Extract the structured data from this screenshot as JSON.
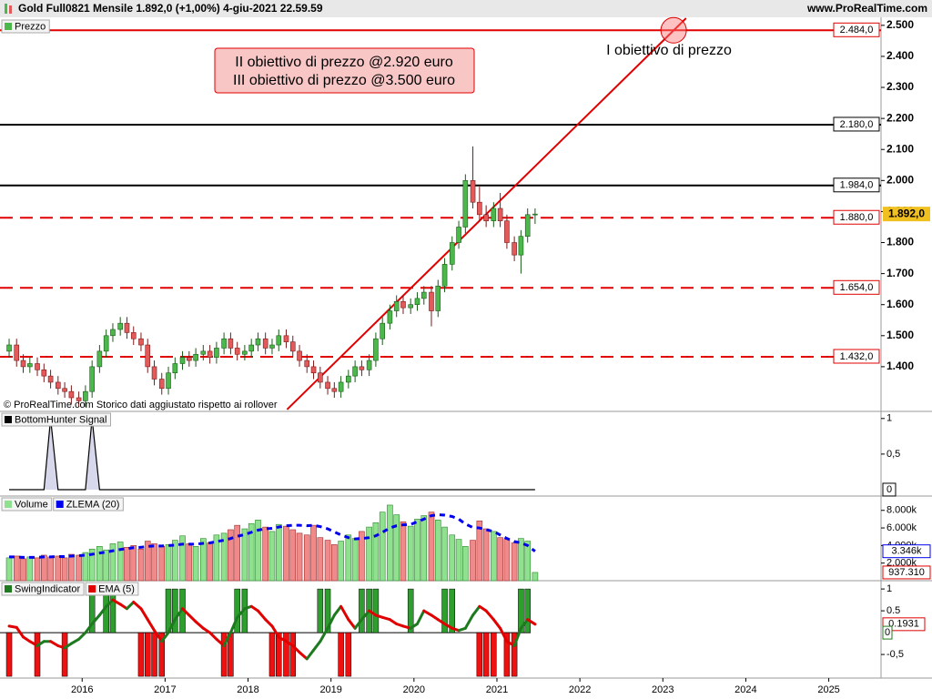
{
  "header": {
    "title": "Gold Full0821 Mensile 1.892,0 (+1,00%) 4-giu-2021 22.59.59",
    "site": "www.ProRealTime.com"
  },
  "chart_data": [
    {
      "type": "candlestick",
      "name": "Prezzo",
      "up_color": "#4cb84c",
      "down_color": "#e45a5a",
      "x": [
        2015.12,
        2015.21,
        2015.29,
        2015.37,
        2015.46,
        2015.54,
        2015.62,
        2015.71,
        2015.79,
        2015.87,
        2015.96,
        2016.04,
        2016.12,
        2016.21,
        2016.29,
        2016.37,
        2016.46,
        2016.54,
        2016.62,
        2016.71,
        2016.79,
        2016.87,
        2016.96,
        2017.04,
        2017.12,
        2017.21,
        2017.29,
        2017.37,
        2017.46,
        2017.54,
        2017.62,
        2017.71,
        2017.79,
        2017.87,
        2017.96,
        2018.04,
        2018.12,
        2018.21,
        2018.29,
        2018.37,
        2018.46,
        2018.54,
        2018.62,
        2018.71,
        2018.79,
        2018.87,
        2018.96,
        2019.04,
        2019.12,
        2019.21,
        2019.29,
        2019.37,
        2019.46,
        2019.54,
        2019.62,
        2019.71,
        2019.79,
        2019.87,
        2019.96,
        2020.04,
        2020.12,
        2020.21,
        2020.29,
        2020.37,
        2020.46,
        2020.54,
        2020.62,
        2020.71,
        2020.79,
        2020.87,
        2020.96,
        2021.04,
        2021.12,
        2021.21,
        2021.29,
        2021.37,
        2021.46
      ],
      "open": [
        1450,
        1470,
        1420,
        1400,
        1410,
        1390,
        1370,
        1350,
        1330,
        1320,
        1300,
        1290,
        1320,
        1400,
        1450,
        1500,
        1520,
        1540,
        1510,
        1490,
        1470,
        1400,
        1360,
        1330,
        1380,
        1410,
        1430,
        1420,
        1440,
        1450,
        1430,
        1460,
        1490,
        1460,
        1440,
        1450,
        1470,
        1490,
        1460,
        1470,
        1500,
        1480,
        1450,
        1420,
        1400,
        1380,
        1350,
        1330,
        1320,
        1350,
        1370,
        1400,
        1390,
        1420,
        1490,
        1540,
        1580,
        1610,
        1590,
        1600,
        1620,
        1640,
        1580,
        1660,
        1730,
        1800,
        1850,
        2000,
        1930,
        1890,
        1870,
        1910,
        1870,
        1800,
        1760,
        1820,
        1890
      ],
      "high": [
        1490,
        1490,
        1440,
        1430,
        1430,
        1410,
        1390,
        1370,
        1350,
        1340,
        1320,
        1340,
        1420,
        1470,
        1520,
        1540,
        1560,
        1560,
        1530,
        1510,
        1490,
        1420,
        1380,
        1400,
        1430,
        1450,
        1450,
        1460,
        1470,
        1470,
        1480,
        1510,
        1510,
        1480,
        1470,
        1490,
        1510,
        1510,
        1490,
        1520,
        1520,
        1500,
        1470,
        1440,
        1420,
        1400,
        1370,
        1350,
        1370,
        1390,
        1420,
        1420,
        1440,
        1510,
        1560,
        1600,
        1630,
        1630,
        1620,
        1640,
        1660,
        1660,
        1680,
        1750,
        1820,
        1870,
        2020,
        2110,
        1980,
        1920,
        1930,
        1960,
        1890,
        1820,
        1840,
        1910,
        1910
      ],
      "low": [
        1430,
        1400,
        1380,
        1380,
        1370,
        1350,
        1330,
        1310,
        1300,
        1280,
        1270,
        1270,
        1300,
        1380,
        1430,
        1480,
        1500,
        1490,
        1470,
        1450,
        1380,
        1340,
        1310,
        1310,
        1360,
        1390,
        1400,
        1400,
        1420,
        1410,
        1410,
        1440,
        1440,
        1420,
        1420,
        1430,
        1450,
        1440,
        1440,
        1450,
        1460,
        1430,
        1400,
        1380,
        1360,
        1330,
        1310,
        1300,
        1300,
        1330,
        1350,
        1370,
        1370,
        1400,
        1470,
        1520,
        1560,
        1570,
        1570,
        1580,
        1600,
        1530,
        1560,
        1640,
        1710,
        1780,
        1830,
        1910,
        1870,
        1850,
        1850,
        1850,
        1780,
        1740,
        1700,
        1800,
        1860
      ],
      "close": [
        1470,
        1420,
        1400,
        1410,
        1390,
        1370,
        1350,
        1330,
        1320,
        1300,
        1290,
        1320,
        1400,
        1450,
        1500,
        1520,
        1540,
        1510,
        1490,
        1470,
        1400,
        1360,
        1330,
        1380,
        1410,
        1430,
        1420,
        1440,
        1450,
        1430,
        1460,
        1490,
        1460,
        1440,
        1450,
        1470,
        1490,
        1460,
        1470,
        1500,
        1480,
        1450,
        1420,
        1400,
        1380,
        1350,
        1330,
        1320,
        1350,
        1370,
        1400,
        1390,
        1420,
        1490,
        1540,
        1580,
        1610,
        1590,
        1600,
        1620,
        1640,
        1580,
        1660,
        1730,
        1800,
        1850,
        2000,
        1930,
        1890,
        1870,
        1910,
        1870,
        1800,
        1760,
        1820,
        1890,
        1892
      ],
      "last_label": "1.892,0",
      "ylim": [
        1256,
        2523
      ],
      "yticks": [
        {
          "value": 1400,
          "label": "1.400"
        },
        {
          "value": 1500,
          "label": "1.500"
        },
        {
          "value": 1600,
          "label": "1.600"
        },
        {
          "value": 1700,
          "label": "1.700"
        },
        {
          "value": 1800,
          "label": "1.800"
        },
        {
          "value": 1900,
          "label": "1.900"
        },
        {
          "value": 2000,
          "label": "2.000"
        },
        {
          "value": 2100,
          "label": "2.100"
        },
        {
          "value": 2200,
          "label": "2.200"
        },
        {
          "value": 2300,
          "label": "2.300"
        },
        {
          "value": 2400,
          "label": "2.400"
        },
        {
          "value": 2500,
          "label": "2.500"
        }
      ],
      "levels": [
        {
          "value": 2484,
          "label": "2.484,0",
          "color": "#e00000",
          "dashed": false
        },
        {
          "value": 2180,
          "label": "2.180,0",
          "color": "#000000",
          "dashed": false
        },
        {
          "value": 1984,
          "label": "1.984,0",
          "color": "#000000",
          "dashed": false
        },
        {
          "value": 1880,
          "label": "1.880,0",
          "color": "#e00000",
          "dashed": true
        },
        {
          "value": 1654,
          "label": "1.654,0",
          "color": "#e00000",
          "dashed": true
        },
        {
          "value": 1432,
          "label": "1.432,0",
          "color": "#e00000",
          "dashed": true
        }
      ],
      "trendline": {
        "x": [
          2018.47,
          2023.28
        ],
        "y": [
          1262,
          2523
        ],
        "color": "#e00000"
      },
      "target": {
        "x": 2023.13,
        "y": 2484,
        "label": "I obiettivo di prezzo"
      },
      "note_lines": [
        "II obiettivo di prezzo @2.920 euro",
        "III obiettivo di prezzo @3.500 euro"
      ],
      "copyright": "© ProRealTime.com  Storico dati aggiustato rispetto ai rollover"
    },
    {
      "type": "area",
      "name": "BottomHunter Signal",
      "color": "#000000",
      "fill": "#d8d8ec",
      "values": [
        0,
        0,
        0,
        0,
        0,
        0,
        1,
        0,
        0,
        0,
        0,
        0,
        1,
        0,
        0,
        0,
        0,
        0,
        0,
        0,
        0,
        0,
        0,
        0,
        0,
        0,
        0,
        0,
        0,
        0,
        0,
        0,
        0,
        0,
        0,
        0,
        0,
        0,
        0,
        0,
        0,
        0,
        0,
        0,
        0,
        0,
        0,
        0,
        0,
        0,
        0,
        0,
        0,
        0,
        0,
        0,
        0,
        0,
        0,
        0,
        0,
        0,
        0,
        0,
        0,
        0,
        0,
        0,
        0,
        0,
        0,
        0,
        0,
        0,
        0,
        0,
        0
      ],
      "ylim": [
        -0.09,
        1.1
      ],
      "yticks": [
        1,
        {
          "value": 0.5,
          "label": "0,5"
        }
      ]
    },
    {
      "type": "bar",
      "series": [
        {
          "name": "Volume",
          "color": "#e00000",
          "last_label": "937.310",
          "values": [
            2600,
            2800,
            2500,
            2700,
            2600,
            2900,
            2700,
            2800,
            2600,
            3000,
            2900,
            3200,
            3600,
            3900,
            3500,
            4200,
            4400,
            3800,
            4000,
            3600,
            4500,
            4200,
            3900,
            4100,
            4600,
            5100,
            4200,
            3900,
            4800,
            4300,
            5200,
            5400,
            5800,
            6300,
            5900,
            6500,
            6900,
            6100,
            5600,
            6400,
            6200,
            5800,
            5400,
            5200,
            6300,
            4900,
            4600,
            4100,
            4500,
            5200,
            4800,
            5600,
            6100,
            6600,
            7800,
            8600,
            7500,
            6700,
            6200,
            7000,
            7400,
            7800,
            6900,
            6100,
            5200,
            4700,
            3900,
            4600,
            6800,
            5900,
            5600,
            4900,
            4700,
            4300,
            4800,
            4500,
            937.31
          ]
        },
        {
          "name": "ZLEMA (20)",
          "color": "#0000ee",
          "last_label": "3.346k",
          "values": [
            2700,
            2700,
            2650,
            2650,
            2650,
            2700,
            2700,
            2750,
            2750,
            2800,
            2850,
            2900,
            3000,
            3150,
            3250,
            3400,
            3550,
            3650,
            3750,
            3800,
            3900,
            3950,
            3950,
            4000,
            4050,
            4150,
            4150,
            4150,
            4250,
            4300,
            4450,
            4600,
            4800,
            5050,
            5250,
            5500,
            5750,
            5900,
            5950,
            6100,
            6250,
            6300,
            6300,
            6250,
            6300,
            6150,
            5900,
            5550,
            5200,
            4900,
            4750,
            4800,
            4900,
            5100,
            5500,
            6000,
            6250,
            6350,
            6400,
            6700,
            7000,
            7400,
            7500,
            7450,
            7300,
            7000,
            6450,
            6050,
            6000,
            5800,
            5600,
            5200,
            4800,
            4450,
            4300,
            4000,
            3346
          ]
        }
      ],
      "ylim": [
        0,
        9630
      ],
      "yticks": [
        {
          "value": 2000,
          "label": "2.000k"
        },
        {
          "value": 4000,
          "label": "4.000k"
        },
        {
          "value": 6000,
          "label": "6.000k"
        },
        {
          "value": 8000,
          "label": "8.000k"
        }
      ]
    },
    {
      "type": "bar",
      "series": [
        {
          "name": "SwingIndicator",
          "color": "#1e7a1e",
          "values": [
            -1,
            0,
            0,
            0,
            -1,
            0,
            0,
            0,
            -1,
            0,
            0,
            0,
            1,
            0,
            1,
            1,
            0,
            0,
            0,
            -1,
            -1,
            -1,
            -1,
            1,
            1,
            1,
            0,
            0,
            0,
            0,
            0,
            -1,
            -1,
            1,
            1,
            0,
            0,
            0,
            -1,
            -1,
            -1,
            -1,
            0,
            0,
            0,
            1,
            1,
            0,
            -1,
            -1,
            0,
            1,
            1,
            1,
            0,
            0,
            0,
            0,
            1,
            0,
            0,
            0,
            0,
            1,
            1,
            0,
            0,
            0,
            -1,
            -1,
            -1,
            0,
            -1,
            -1,
            1,
            1,
            0
          ]
        },
        {
          "name": "EMA (5)",
          "color": "#e00000",
          "values": [
            0.15,
            0.12,
            -0.1,
            -0.2,
            -0.3,
            -0.2,
            -0.2,
            -0.3,
            -0.35,
            -0.25,
            -0.15,
            0,
            0.2,
            0.4,
            0.6,
            0.75,
            0.65,
            0.55,
            0.7,
            0.55,
            0.3,
            0.05,
            -0.2,
            0,
            0.3,
            0.55,
            0.4,
            0.25,
            0.1,
            0,
            -0.15,
            -0.3,
            0,
            0.35,
            0.55,
            0.6,
            0.5,
            0.3,
            0.15,
            -0.1,
            -0.2,
            -0.3,
            -0.45,
            -0.6,
            -0.4,
            -0.2,
            0.1,
            0.4,
            0.6,
            0.3,
            0.1,
            0.3,
            0.5,
            0.4,
            0.35,
            0.3,
            0.2,
            0.15,
            0.1,
            0.2,
            0.5,
            0.4,
            0.3,
            0.2,
            0.1,
            0.05,
            0.1,
            0.4,
            0.6,
            0.5,
            0.3,
            0.1,
            -0.2,
            -0.3,
            0.1,
            0.3,
            0.1931
          ]
        }
      ],
      "up_color": "#1e7a1e",
      "down_color": "#e00000",
      "ylim": [
        -1.04,
        1.19
      ],
      "yticks": [
        1,
        0.5,
        {
          "value": -0.5,
          "label": "-0,5"
        }
      ],
      "xlim": [
        2015.01,
        2025.63
      ],
      "xticks": [
        2016,
        2017,
        2018,
        2019,
        2020,
        2021,
        2022,
        2023,
        2024,
        2025
      ]
    }
  ]
}
